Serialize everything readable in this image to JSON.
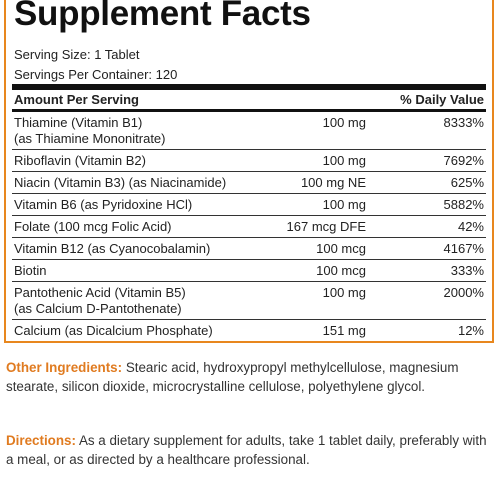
{
  "header": {
    "title": "Supplement Facts",
    "serving_size": "Serving Size: 1 Tablet",
    "servings_per_container": "Servings Per Container: 120"
  },
  "table": {
    "columns": [
      "Amount Per Serving",
      "% Daily Value"
    ],
    "rows": [
      {
        "name": [
          "Thiamine (Vitamin B1)",
          "(as Thiamine Mononitrate)"
        ],
        "amount": "100 mg",
        "dv": "8333%"
      },
      {
        "name": [
          "Riboflavin (Vitamin B2)"
        ],
        "amount": "100 mg",
        "dv": "7692%"
      },
      {
        "name": [
          "Niacin (Vitamin B3) (as Niacinamide)"
        ],
        "amount": "100 mg NE",
        "dv": "625%"
      },
      {
        "name": [
          "Vitamin B6 (as Pyridoxine HCl)"
        ],
        "amount": "100 mg",
        "dv": "5882%"
      },
      {
        "name": [
          "Folate (100 mcg Folic Acid)"
        ],
        "amount": "167 mcg DFE",
        "dv": "42%"
      },
      {
        "name": [
          "Vitamin B12 (as Cyanocobalamin)"
        ],
        "amount": "100 mcg",
        "dv": "4167%"
      },
      {
        "name": [
          "Biotin"
        ],
        "amount": "100 mcg",
        "dv": "333%"
      },
      {
        "name": [
          "Pantothenic Acid (Vitamin B5)",
          "(as Calcium D-Pantothenate)"
        ],
        "amount": "100 mg",
        "dv": "2000%"
      },
      {
        "name": [
          "Calcium (as Dicalcium Phosphate)"
        ],
        "amount": "151 mg",
        "dv": "12%"
      }
    ]
  },
  "other_ingredients": {
    "label": "Other Ingredients:",
    "text": "Stearic acid, hydroxypropyl methylcellulose, magnesium stearate, silicon dioxide, microcrystalline cellulose, polyethylene glycol."
  },
  "directions": {
    "label": "Directions:",
    "text": "As a dietary supplement for adults, take 1 tablet daily, preferably with a meal, or as directed by a healthcare professional."
  }
}
